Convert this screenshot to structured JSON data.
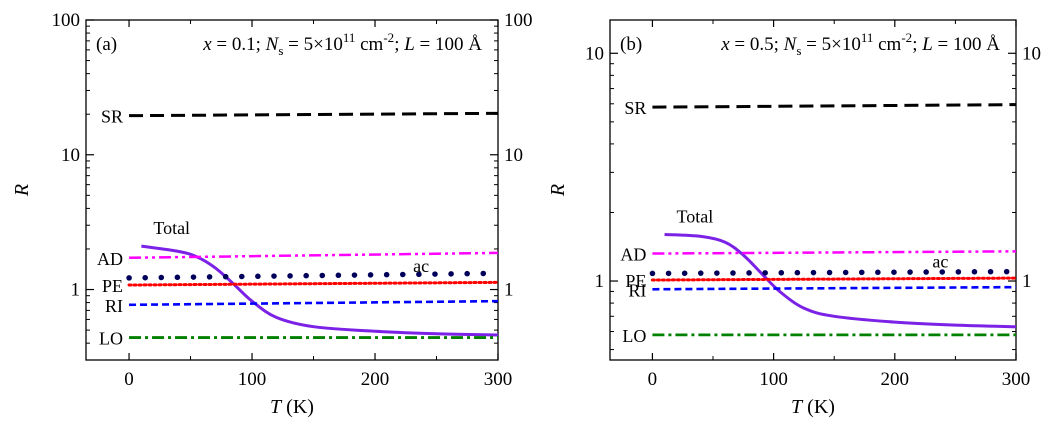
{
  "chart_data": [
    {
      "type": "line",
      "panel_label": "(a)",
      "params": {
        "x": "x",
        "x_value": "0.1",
        "n": "N",
        "n_sub": "s",
        "n_value": "5×10",
        "n_exp": "11",
        "n_unit": "cm",
        "n_unit_exp": "-2",
        "l": "L",
        "l_value": "100 Å"
      },
      "xlabel": "T",
      "xlabel_unit": "(K)",
      "ylabel": "R",
      "xlim": [
        -35,
        300
      ],
      "ylim": [
        0.3,
        100
      ],
      "yscale": "log",
      "grid": false,
      "xticks": [
        0,
        100,
        200,
        300
      ],
      "yticks": [
        1,
        10,
        100
      ],
      "series": [
        {
          "name": "SR",
          "color": "#000000",
          "style": "dash",
          "x": [
            0,
            300
          ],
          "values": [
            19.5,
            20.3
          ]
        },
        {
          "name": "Total",
          "color": "#7b22e6",
          "style": "solid",
          "x": [
            10,
            40,
            55,
            70,
            85,
            100,
            120,
            150,
            200,
            250,
            300
          ],
          "values": [
            2.1,
            1.92,
            1.75,
            1.45,
            1.1,
            0.82,
            0.62,
            0.53,
            0.49,
            0.47,
            0.46
          ]
        },
        {
          "name": "AD",
          "color": "#ff00ff",
          "style": "dashdotdot",
          "x": [
            0,
            300
          ],
          "values": [
            1.72,
            1.87
          ]
        },
        {
          "name": "ac",
          "color": "#00005a",
          "style": "dot-large",
          "x": [
            0,
            300
          ],
          "values": [
            1.22,
            1.32
          ]
        },
        {
          "name": "PE",
          "color": "#ff0000",
          "style": "dot",
          "x": [
            0,
            300
          ],
          "values": [
            1.08,
            1.13
          ]
        },
        {
          "name": "RI",
          "color": "#0000ff",
          "style": "short-dash",
          "x": [
            0,
            300
          ],
          "values": [
            0.77,
            0.82
          ]
        },
        {
          "name": "LO",
          "color": "#008000",
          "style": "dashdot",
          "x": [
            0,
            300
          ],
          "values": [
            0.44,
            0.44
          ]
        }
      ]
    },
    {
      "type": "line",
      "panel_label": "(b)",
      "params": {
        "x": "x",
        "x_value": "0.5",
        "n": "N",
        "n_sub": "s",
        "n_value": "5×10",
        "n_exp": "11",
        "n_unit": "cm",
        "n_unit_exp": "-2",
        "l": "L",
        "l_value": "100 Å"
      },
      "xlabel": "T",
      "xlabel_unit": "(K)",
      "ylabel": "R",
      "xlim": [
        -35,
        300
      ],
      "ylim": [
        0.45,
        14
      ],
      "yscale": "log",
      "grid": false,
      "xticks": [
        0,
        100,
        200,
        300
      ],
      "yticks": [
        1,
        10
      ],
      "series": [
        {
          "name": "SR",
          "color": "#000000",
          "style": "dash",
          "x": [
            0,
            300
          ],
          "values": [
            5.8,
            5.95
          ]
        },
        {
          "name": "Total",
          "color": "#7b22e6",
          "style": "solid",
          "x": [
            10,
            40,
            60,
            75,
            90,
            105,
            125,
            150,
            200,
            250,
            300
          ],
          "values": [
            1.6,
            1.57,
            1.48,
            1.3,
            1.08,
            0.9,
            0.76,
            0.7,
            0.66,
            0.64,
            0.63
          ]
        },
        {
          "name": "AD",
          "color": "#ff00ff",
          "style": "dashdotdot",
          "x": [
            0,
            300
          ],
          "values": [
            1.32,
            1.35
          ]
        },
        {
          "name": "ac",
          "color": "#00005a",
          "style": "dot-large",
          "x": [
            0,
            300
          ],
          "values": [
            1.08,
            1.1
          ]
        },
        {
          "name": "PE",
          "color": "#ff0000",
          "style": "dot",
          "x": [
            0,
            300
          ],
          "values": [
            1.01,
            1.03
          ]
        },
        {
          "name": "RI",
          "color": "#0000ff",
          "style": "short-dash",
          "x": [
            0,
            300
          ],
          "values": [
            0.92,
            0.94
          ]
        },
        {
          "name": "LO",
          "color": "#008000",
          "style": "dashdot",
          "x": [
            0,
            300
          ],
          "values": [
            0.58,
            0.58
          ]
        }
      ]
    }
  ]
}
